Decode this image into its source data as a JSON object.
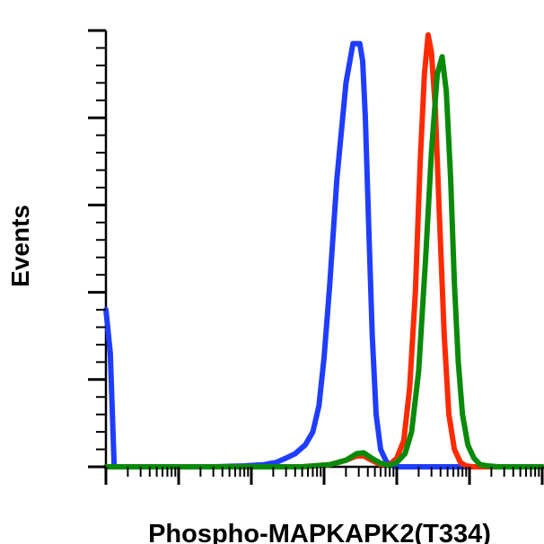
{
  "chart_data": {
    "type": "line",
    "xlabel": "Phospho-MAPKAPK2(T334)",
    "ylabel": "Events",
    "x_scale": "log",
    "xlim": [
      1,
      1000000
    ],
    "ylim": [
      0,
      100
    ],
    "grid": false,
    "legend": "none",
    "series": [
      {
        "color": "#1f3dff",
        "x": [
          1,
          1.15,
          1.3,
          2,
          10,
          30,
          80,
          150,
          220,
          300,
          400,
          550,
          700,
          850,
          1000,
          1200,
          1500,
          2000,
          2500,
          2800,
          3100,
          3400,
          3700,
          4100,
          4600,
          5200,
          6000,
          7200,
          8500,
          10000,
          12000,
          14000,
          17000,
          20000,
          1000000
        ],
        "y": [
          36,
          26,
          0,
          0,
          0,
          0,
          0.2,
          0.5,
          1,
          2,
          3,
          5,
          8,
          14,
          25,
          42,
          66,
          88,
          97,
          97,
          97,
          93,
          80,
          56,
          30,
          12,
          4,
          1.2,
          0.3,
          0,
          0,
          0,
          0,
          0,
          0
        ]
      },
      {
        "color": "#ff2a00",
        "x": [
          1,
          500,
          1200,
          2000,
          2800,
          3500,
          4500,
          6000,
          8000,
          10000,
          12500,
          15000,
          18000,
          21000,
          24000,
          27000,
          30000,
          34000,
          38000,
          45000,
          52000,
          62000,
          75000,
          90000,
          110000,
          1000000
        ],
        "y": [
          0,
          0,
          0.5,
          1.5,
          2.5,
          2.5,
          1.5,
          0.5,
          0.5,
          2,
          6,
          18,
          40,
          70,
          90,
          99,
          95,
          82,
          60,
          30,
          12,
          4,
          1,
          0.2,
          0,
          0
        ]
      },
      {
        "color": "#0a8a0a",
        "x": [
          1,
          500,
          1200,
          2000,
          2800,
          3500,
          4500,
          6000,
          8000,
          10000,
          13000,
          16000,
          20000,
          25000,
          30000,
          36000,
          42000,
          48000,
          55000,
          62000,
          70000,
          80000,
          95000,
          115000,
          140000,
          180000,
          250000,
          1000000
        ],
        "y": [
          0,
          0,
          0.5,
          1.5,
          3,
          3.2,
          2,
          0.8,
          0.3,
          1,
          3,
          8,
          22,
          48,
          72,
          90,
          94,
          86,
          66,
          42,
          24,
          12,
          5,
          2,
          0.5,
          0.2,
          0,
          0
        ]
      }
    ]
  }
}
